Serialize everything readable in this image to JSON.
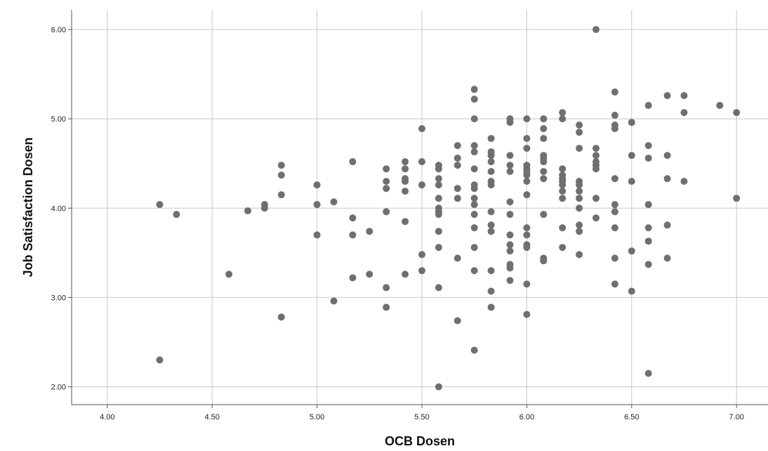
{
  "chart_data": {
    "type": "scatter",
    "xlabel": "OCB Dosen",
    "ylabel": "Job Satisfaction Dosen",
    "xlim": [
      3.83,
      7.15
    ],
    "ylim": [
      1.8,
      6.22
    ],
    "grid": true,
    "x_ticks": [
      "4.00",
      "4.50",
      "5.00",
      "5.50",
      "6.00",
      "6.50",
      "7.00"
    ],
    "y_ticks": [
      "2.00",
      "3.00",
      "4.00",
      "5.00",
      "6.00"
    ],
    "marker_color": "#6f6f6f",
    "series": [
      {
        "points": [
          [
            4.25,
            4.04
          ],
          [
            4.25,
            2.3
          ],
          [
            4.33,
            3.93
          ],
          [
            4.58,
            3.26
          ],
          [
            4.67,
            3.97
          ],
          [
            4.75,
            4.04
          ],
          [
            4.75,
            4.0
          ],
          [
            4.83,
            4.48
          ],
          [
            4.83,
            4.37
          ],
          [
            4.83,
            4.15
          ],
          [
            4.83,
            2.78
          ],
          [
            5.0,
            4.26
          ],
          [
            5.0,
            4.04
          ],
          [
            5.0,
            3.7
          ],
          [
            5.08,
            4.07
          ],
          [
            5.08,
            2.96
          ],
          [
            5.17,
            4.52
          ],
          [
            5.17,
            3.89
          ],
          [
            5.17,
            3.7
          ],
          [
            5.17,
            3.22
          ],
          [
            5.25,
            3.74
          ],
          [
            5.25,
            3.26
          ],
          [
            5.33,
            4.44
          ],
          [
            5.33,
            4.3
          ],
          [
            5.33,
            4.22
          ],
          [
            5.33,
            3.96
          ],
          [
            5.33,
            3.11
          ],
          [
            5.33,
            2.89
          ],
          [
            5.42,
            4.52
          ],
          [
            5.42,
            4.44
          ],
          [
            5.42,
            4.33
          ],
          [
            5.42,
            4.3
          ],
          [
            5.42,
            4.19
          ],
          [
            5.42,
            3.85
          ],
          [
            5.42,
            3.26
          ],
          [
            5.5,
            4.89
          ],
          [
            5.5,
            4.52
          ],
          [
            5.5,
            4.26
          ],
          [
            5.5,
            3.48
          ],
          [
            5.5,
            3.3
          ],
          [
            5.58,
            4.48
          ],
          [
            5.58,
            4.44
          ],
          [
            5.58,
            4.33
          ],
          [
            5.58,
            4.26
          ],
          [
            5.58,
            4.11
          ],
          [
            5.58,
            4.0
          ],
          [
            5.58,
            3.96
          ],
          [
            5.58,
            3.93
          ],
          [
            5.58,
            3.74
          ],
          [
            5.58,
            3.56
          ],
          [
            5.58,
            3.11
          ],
          [
            5.58,
            2.0
          ],
          [
            5.67,
            4.7
          ],
          [
            5.67,
            4.56
          ],
          [
            5.67,
            4.48
          ],
          [
            5.67,
            4.22
          ],
          [
            5.67,
            4.11
          ],
          [
            5.67,
            3.44
          ],
          [
            5.67,
            2.74
          ],
          [
            5.75,
            5.33
          ],
          [
            5.75,
            5.22
          ],
          [
            5.75,
            5.0
          ],
          [
            5.75,
            4.7
          ],
          [
            5.75,
            4.63
          ],
          [
            5.75,
            4.44
          ],
          [
            5.75,
            4.26
          ],
          [
            5.75,
            4.22
          ],
          [
            5.75,
            4.11
          ],
          [
            5.75,
            4.04
          ],
          [
            5.75,
            3.93
          ],
          [
            5.75,
            3.78
          ],
          [
            5.75,
            3.56
          ],
          [
            5.75,
            3.3
          ],
          [
            5.75,
            2.41
          ],
          [
            5.83,
            4.78
          ],
          [
            5.83,
            4.63
          ],
          [
            5.83,
            4.59
          ],
          [
            5.83,
            4.52
          ],
          [
            5.83,
            4.41
          ],
          [
            5.83,
            4.3
          ],
          [
            5.83,
            4.26
          ],
          [
            5.83,
            3.96
          ],
          [
            5.83,
            3.81
          ],
          [
            5.83,
            3.74
          ],
          [
            5.83,
            3.3
          ],
          [
            5.83,
            3.07
          ],
          [
            5.83,
            2.89
          ],
          [
            5.92,
            5.0
          ],
          [
            5.92,
            4.96
          ],
          [
            5.92,
            4.59
          ],
          [
            5.92,
            4.48
          ],
          [
            5.92,
            4.41
          ],
          [
            5.92,
            4.07
          ],
          [
            5.92,
            3.93
          ],
          [
            5.92,
            3.7
          ],
          [
            5.92,
            3.59
          ],
          [
            5.92,
            3.52
          ],
          [
            5.92,
            3.37
          ],
          [
            5.92,
            3.33
          ],
          [
            5.92,
            3.19
          ],
          [
            6.0,
            5.0
          ],
          [
            6.0,
            4.78
          ],
          [
            6.0,
            4.67
          ],
          [
            6.0,
            4.48
          ],
          [
            6.0,
            4.44
          ],
          [
            6.0,
            4.41
          ],
          [
            6.0,
            4.37
          ],
          [
            6.0,
            4.3
          ],
          [
            6.0,
            4.15
          ],
          [
            6.0,
            3.78
          ],
          [
            6.0,
            3.7
          ],
          [
            6.0,
            3.59
          ],
          [
            6.0,
            3.56
          ],
          [
            6.0,
            3.15
          ],
          [
            6.0,
            2.81
          ],
          [
            6.08,
            5.0
          ],
          [
            6.08,
            4.89
          ],
          [
            6.08,
            4.78
          ],
          [
            6.08,
            4.59
          ],
          [
            6.08,
            4.56
          ],
          [
            6.08,
            4.52
          ],
          [
            6.08,
            4.41
          ],
          [
            6.08,
            4.33
          ],
          [
            6.08,
            3.93
          ],
          [
            6.08,
            3.44
          ],
          [
            6.08,
            3.41
          ],
          [
            6.17,
            5.07
          ],
          [
            6.17,
            5.0
          ],
          [
            6.17,
            4.44
          ],
          [
            6.17,
            4.37
          ],
          [
            6.17,
            4.33
          ],
          [
            6.17,
            4.3
          ],
          [
            6.17,
            4.26
          ],
          [
            6.17,
            4.19
          ],
          [
            6.17,
            4.11
          ],
          [
            6.17,
            3.78
          ],
          [
            6.17,
            3.56
          ],
          [
            6.25,
            4.93
          ],
          [
            6.25,
            4.85
          ],
          [
            6.25,
            4.67
          ],
          [
            6.25,
            4.3
          ],
          [
            6.25,
            4.26
          ],
          [
            6.25,
            4.19
          ],
          [
            6.25,
            4.11
          ],
          [
            6.25,
            4.0
          ],
          [
            6.25,
            3.81
          ],
          [
            6.25,
            3.74
          ],
          [
            6.25,
            3.48
          ],
          [
            6.33,
            6.0
          ],
          [
            6.33,
            4.67
          ],
          [
            6.33,
            4.59
          ],
          [
            6.33,
            4.52
          ],
          [
            6.33,
            4.48
          ],
          [
            6.33,
            4.44
          ],
          [
            6.33,
            4.11
          ],
          [
            6.33,
            3.89
          ],
          [
            6.42,
            5.3
          ],
          [
            6.42,
            5.04
          ],
          [
            6.42,
            4.93
          ],
          [
            6.42,
            4.89
          ],
          [
            6.42,
            4.33
          ],
          [
            6.42,
            4.04
          ],
          [
            6.42,
            3.96
          ],
          [
            6.42,
            3.78
          ],
          [
            6.42,
            3.44
          ],
          [
            6.42,
            3.15
          ],
          [
            6.5,
            4.96
          ],
          [
            6.5,
            4.59
          ],
          [
            6.5,
            4.3
          ],
          [
            6.5,
            3.52
          ],
          [
            6.5,
            3.07
          ],
          [
            6.58,
            5.15
          ],
          [
            6.58,
            4.7
          ],
          [
            6.58,
            4.56
          ],
          [
            6.58,
            4.04
          ],
          [
            6.58,
            3.78
          ],
          [
            6.58,
            3.63
          ],
          [
            6.58,
            3.37
          ],
          [
            6.58,
            2.15
          ],
          [
            6.67,
            5.26
          ],
          [
            6.67,
            4.59
          ],
          [
            6.67,
            4.33
          ],
          [
            6.67,
            3.81
          ],
          [
            6.67,
            3.44
          ],
          [
            6.75,
            5.26
          ],
          [
            6.75,
            5.07
          ],
          [
            6.75,
            4.3
          ],
          [
            6.92,
            5.15
          ],
          [
            7.0,
            5.07
          ],
          [
            7.0,
            4.11
          ]
        ]
      }
    ]
  }
}
